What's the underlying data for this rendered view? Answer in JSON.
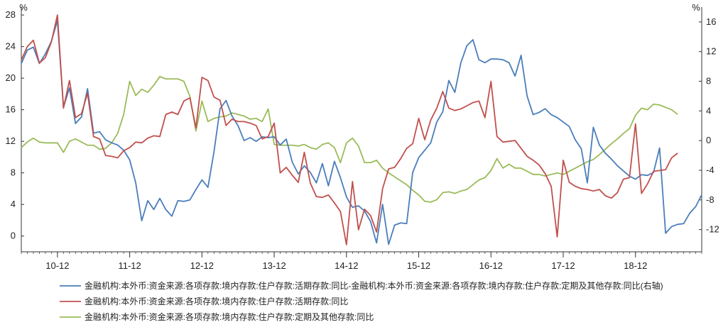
{
  "chart_data": {
    "type": "line",
    "title": "",
    "y_left": {
      "unit": "%",
      "ylim": [
        -2,
        29
      ],
      "ticks": [
        0,
        4,
        8,
        12,
        16,
        20,
        24,
        28
      ]
    },
    "y_right": {
      "unit": "%",
      "ylim": [
        -15,
        18
      ],
      "ticks": [
        -12,
        -8,
        -4,
        0,
        4,
        8,
        12,
        16
      ]
    },
    "x_ticks": [
      "10-12",
      "11-12",
      "12-12",
      "13-12",
      "14-12",
      "15-12",
      "16-12",
      "17-12",
      "18-12"
    ],
    "grid": false,
    "legend_position": "bottom",
    "colors": {
      "blue": "#4a7ebb",
      "red": "#c0504d",
      "green": "#9bbb59",
      "axis": "#333333"
    },
    "series": [
      {
        "name": "金融机构:本外币:资金来源:各项存款:境内存款:住户存款:活期存款:同比-金融机构:本外币:资金来源:各项存款:境内存款:住户存款:定期及其他存款:同比(右轴)",
        "axis": "right",
        "color": "#4a7ebb",
        "values": [
          10.4,
          12.2,
          12.6,
          10.4,
          11.7,
          13.4,
          16.2,
          4.5,
          7.1,
          2.3,
          3.2,
          7.0,
          1.0,
          1.2,
          0.1,
          -0.3,
          -0.6,
          -1.3,
          -2.6,
          -5.7,
          -10.8,
          -8.1,
          -9.3,
          -7.8,
          -9.3,
          -10.2,
          -8.1,
          -8.2,
          -8.0,
          -6.6,
          -5.3,
          -6.3,
          -1.5,
          4.3,
          5.4,
          3.3,
          2.0,
          0.0,
          0.4,
          -0.1,
          0.5,
          0.4,
          0.5,
          -0.6,
          0.2,
          -2.9,
          -4.5,
          -3.4,
          -4.3,
          -5.7,
          -3.1,
          -6.1,
          -2.8,
          -5.0,
          -7.6,
          -9.0,
          -8.8,
          -9.5,
          -10.9,
          -13.8,
          -8.6,
          -14.0,
          -11.4,
          -11.1,
          -11.2,
          -4.3,
          -2.3,
          -1.3,
          -0.3,
          2.5,
          3.9,
          8.1,
          6.5,
          10.5,
          12.8,
          13.6,
          10.9,
          10.5,
          11.0,
          11.0,
          10.9,
          10.5,
          8.7,
          11.5,
          6.0,
          3.5,
          3.8,
          4.3,
          3.5,
          3.1,
          2.5,
          1.9,
          0.1,
          -1.1,
          -5.7,
          1.8,
          -0.6,
          -1.7,
          -2.5,
          -3.4,
          -4.1,
          -4.8,
          -5.2,
          -4.6,
          -4.7,
          -4.3,
          -1.0,
          -12.5,
          -11.6,
          -11.3,
          -11.2,
          -9.8,
          -8.9,
          -7.3
        ]
      },
      {
        "name": "金融机构:本外币:资金来源:各项存款:境内存款:住户存款:活期存款:同比",
        "axis": "left",
        "color": "#c0504d",
        "values": [
          22.3,
          24.0,
          24.8,
          21.9,
          22.6,
          24.6,
          28.0,
          16.2,
          19.7,
          15.0,
          15.5,
          18.1,
          12.6,
          12.3,
          10.2,
          10.1,
          9.9,
          10.8,
          11.2,
          11.9,
          11.8,
          12.4,
          12.7,
          12.6,
          15.4,
          15.7,
          15.4,
          17.1,
          17.5,
          13.7,
          20.1,
          19.7,
          17.6,
          17.2,
          14.0,
          14.8,
          14.5,
          14.5,
          14.3,
          14.0,
          12.3,
          12.6,
          14.3,
          8.0,
          8.7,
          7.7,
          6.8,
          10.6,
          6.7,
          5.0,
          4.9,
          5.2,
          4.2,
          3.1,
          -1.1,
          6.9,
          0.8,
          3.4,
          2.6,
          0.5,
          6.0,
          8.5,
          8.7,
          9.8,
          11.1,
          11.7,
          14.9,
          12.2,
          14.7,
          16.2,
          18.3,
          16.2,
          15.9,
          16.1,
          16.5,
          16.9,
          17.1,
          15.0,
          19.6,
          12.6,
          11.9,
          12.0,
          12.1,
          11.1,
          10.1,
          9.6,
          9.0,
          7.9,
          6.3,
          -0.1,
          9.6,
          6.8,
          6.3,
          6.0,
          5.9,
          5.7,
          5.9,
          5.1,
          4.8,
          5.5,
          7.2,
          7.4,
          14.2,
          5.4,
          6.6,
          8.2,
          8.3,
          8.4,
          9.9,
          10.5
        ]
      },
      {
        "name": "金融机构:本外币:资金来源:各项存款:境内存款:住户存款:定期及其他存款:同比",
        "axis": "left",
        "color": "#9bbb59",
        "values": [
          11.2,
          11.9,
          12.4,
          11.9,
          11.8,
          11.8,
          11.8,
          10.6,
          12.0,
          12.3,
          11.9,
          11.5,
          11.5,
          11.0,
          11.1,
          11.8,
          13.0,
          15.4,
          19.6,
          17.8,
          18.6,
          18.2,
          19.1,
          20.2,
          19.9,
          19.9,
          19.9,
          19.6,
          17.7,
          13.3,
          17.1,
          14.5,
          14.9,
          15.1,
          15.2,
          15.6,
          15.4,
          15.2,
          14.8,
          14.9,
          14.5,
          16.1,
          11.6,
          11.5,
          11.5,
          11.5,
          11.4,
          11.6,
          11.2,
          11.0,
          11.6,
          11.8,
          11.2,
          9.3,
          11.8,
          12.4,
          11.4,
          9.3,
          9.3,
          9.6,
          8.6,
          8.0,
          7.5,
          7.0,
          6.5,
          5.8,
          5.2,
          4.4,
          4.3,
          4.6,
          5.5,
          5.6,
          5.4,
          5.7,
          5.9,
          6.5,
          7.1,
          7.4,
          8.3,
          9.8,
          8.6,
          9.1,
          8.6,
          8.6,
          8.2,
          7.8,
          7.8,
          7.6,
          7.8,
          8.0,
          7.8,
          8.2,
          8.6,
          9.0,
          9.4,
          9.7,
          10.3,
          11.0,
          11.7,
          12.3,
          13.0,
          13.6,
          15.3,
          16.2,
          16.0,
          16.7,
          16.6,
          16.3,
          16.0,
          15.4
        ]
      }
    ]
  }
}
